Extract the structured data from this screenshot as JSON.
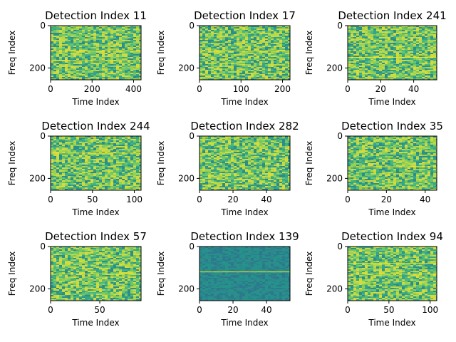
{
  "chart_data": [
    {
      "type": "heatmap",
      "title": "Detection Index 11",
      "xlabel": "Time Index",
      "ylabel": "Freq Index",
      "x_range": [
        0,
        436
      ],
      "y_range": [
        0,
        256
      ],
      "xticks": [
        0,
        200,
        400
      ],
      "yticks": [
        0,
        200
      ],
      "colormap": "viridis",
      "lines": [
        120,
        165
      ]
    },
    {
      "type": "heatmap",
      "title": "Detection Index 17",
      "xlabel": "Time Index",
      "ylabel": "Freq Index",
      "x_range": [
        0,
        218
      ],
      "y_range": [
        0,
        256
      ],
      "xticks": [
        0,
        100,
        200
      ],
      "yticks": [
        0,
        200
      ],
      "colormap": "viridis",
      "lines": [
        120
      ]
    },
    {
      "type": "heatmap",
      "title": "Detection Index 241",
      "xlabel": "Time Index",
      "ylabel": "Freq Index",
      "x_range": [
        0,
        54
      ],
      "y_range": [
        0,
        256
      ],
      "xticks": [
        0,
        20,
        40
      ],
      "yticks": [
        0,
        200
      ],
      "colormap": "viridis",
      "lines": [
        150
      ]
    },
    {
      "type": "heatmap",
      "title": "Detection Index 244",
      "xlabel": "Time Index",
      "ylabel": "Freq Index",
      "x_range": [
        0,
        108
      ],
      "y_range": [
        0,
        256
      ],
      "xticks": [
        0,
        50,
        100
      ],
      "yticks": [
        0,
        200
      ],
      "colormap": "viridis",
      "lines": [
        80
      ]
    },
    {
      "type": "heatmap",
      "title": "Detection Index 282",
      "xlabel": "Time Index",
      "ylabel": "Freq Index",
      "x_range": [
        0,
        54
      ],
      "y_range": [
        0,
        256
      ],
      "xticks": [
        0,
        20,
        40
      ],
      "yticks": [
        0,
        200
      ],
      "colormap": "viridis",
      "lines": []
    },
    {
      "type": "heatmap",
      "title": "Detection Index 35",
      "xlabel": "Time Index",
      "ylabel": "Freq Index",
      "x_range": [
        0,
        46
      ],
      "y_range": [
        0,
        256
      ],
      "xticks": [
        0,
        20,
        40
      ],
      "yticks": [
        0,
        200
      ],
      "colormap": "viridis",
      "lines": [
        145
      ]
    },
    {
      "type": "heatmap",
      "title": "Detection Index 57",
      "xlabel": "Time Index",
      "ylabel": "Freq Index",
      "x_range": [
        0,
        92
      ],
      "y_range": [
        0,
        256
      ],
      "xticks": [
        0,
        50
      ],
      "yticks": [
        0,
        200
      ],
      "colormap": "viridis",
      "lines": [
        130
      ]
    },
    {
      "type": "heatmap",
      "title": "Detection Index 139",
      "xlabel": "Time Index",
      "ylabel": "Freq Index",
      "x_range": [
        0,
        54
      ],
      "y_range": [
        0,
        256
      ],
      "xticks": [
        0,
        20,
        40
      ],
      "yticks": [
        0,
        200
      ],
      "colormap": "viridis",
      "lines": [
        120
      ]
    },
    {
      "type": "heatmap",
      "title": "Detection Index 94",
      "xlabel": "Time Index",
      "ylabel": "Freq Index",
      "x_range": [
        0,
        108
      ],
      "y_range": [
        0,
        256
      ],
      "xticks": [
        0,
        50,
        100
      ],
      "yticks": [
        0,
        200
      ],
      "colormap": "viridis",
      "lines": [
        80,
        130
      ]
    }
  ]
}
